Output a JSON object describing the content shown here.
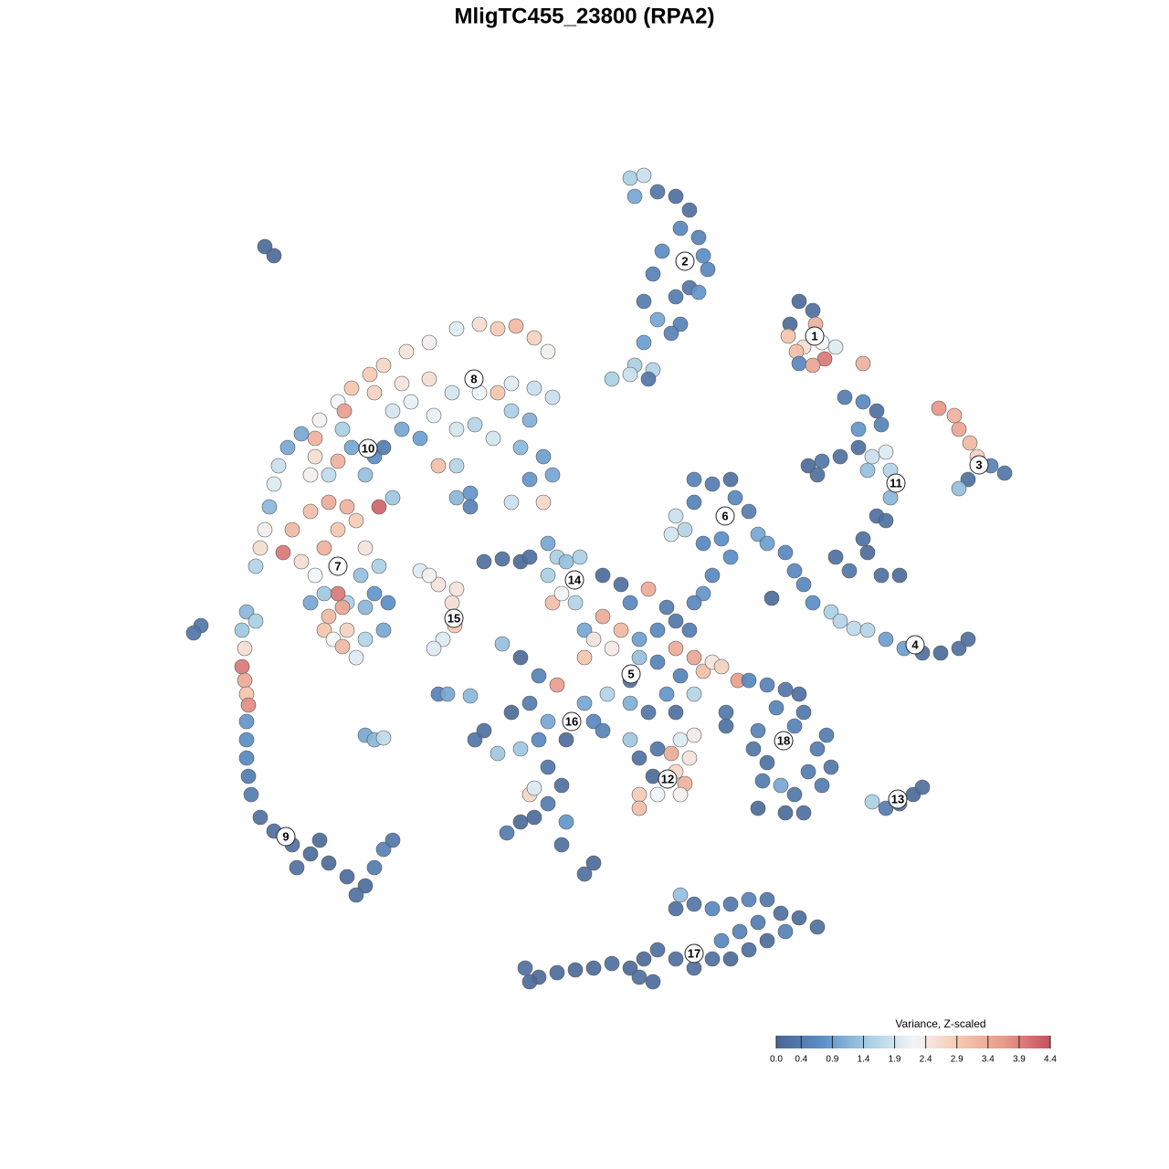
{
  "chart_data": {
    "type": "scatter",
    "title": "MligTC455_23800 (RPA2)",
    "xlim": [
      0,
      1280
    ],
    "ylim": [
      1280,
      0
    ],
    "x": [
      690,
      705,
      695,
      720,
      740,
      755,
      745,
      765,
      770,
      775,
      725,
      715,
      755,
      740,
      705,
      720,
      745,
      705,
      695,
      715,
      710,
      670,
      690,
      735,
      765,
      875,
      890,
      865,
      863,
      880,
      900,
      915,
      893,
      872,
      903,
      875,
      890,
      945,
      1028,
      1045,
      1050,
      1062,
      1070,
      1085,
      1100,
      1060,
      1050,
      925,
      945,
      960,
      965,
      940,
      940,
      955,
      970,
      975,
      950,
      920,
      900,
      885,
      895,
      975,
      960,
      970,
      945,
      950,
      915,
      930,
      965,
      985,
      860,
      870,
      880,
      890,
      910,
      920,
      935,
      950,
      970,
      990,
      1010,
      1030,
      1050,
      1060,
      845,
      760,
      780,
      800,
      805,
      820,
      830,
      790,
      770,
      740,
      735,
      750,
      760,
      800,
      780,
      770,
      760,
      840,
      500,
      525,
      545,
      565,
      585,
      600,
      470,
      445,
      420,
      405,
      385,
      370,
      350,
      330,
      315,
      305,
      300,
      295,
      290,
      285,
      280,
      310,
      320,
      340,
      360,
      380,
      370,
      390,
      400,
      355,
      345,
      330,
      415,
      400,
      410,
      420,
      440,
      460,
      430,
      450,
      475,
      500,
      520,
      540,
      560,
      580,
      595,
      605,
      580,
      570,
      525,
      545,
      560,
      585,
      605,
      495,
      470,
      440,
      410,
      480,
      500,
      515,
      430,
      345,
      375,
      385,
      345,
      377,
      340,
      360,
      370,
      595,
      560,
      395,
      410,
      425,
      400,
      380,
      370,
      375,
      360,
      355,
      380,
      365,
      400,
      420,
      390,
      375,
      340,
      415,
      355,
      290,
      300,
      270,
      280,
      265,
      268,
      265,
      268,
      270,
      272,
      270,
      270,
      270,
      272,
      275,
      285,
      300,
      320,
      340,
      360,
      380,
      400,
      390,
      410,
      420,
      430,
      350,
      325,
      220,
      212,
      460,
      480,
      495,
      498,
      485,
      475,
      500,
      470,
      530,
      550,
      570,
      600,
      610,
      620,
      635,
      600,
      605,
      615,
      630,
      580,
      660,
      680,
      690,
      710,
      730,
      740,
      755,
      720,
      700,
      680,
      660,
      640,
      640,
      650,
      670,
      700,
      720,
      745,
      760,
      730,
      710,
      690,
      665,
      640,
      610,
      590,
      570,
      550,
      580,
      560,
      600,
      620,
      590,
      570,
      545,
      520,
      530,
      600,
      615,
      600,
      585,
      570,
      555,
      620,
      615,
      650,
      640,
      650,
      660,
      690,
      700,
      720,
      735,
      745,
      760,
      755,
      740,
      715,
      700,
      720,
      750,
      745,
      700,
      580,
      585,
      760,
      770,
      780,
      790,
      808,
      740,
      795,
      795,
      740,
      690,
      820,
      840,
      860,
      875,
      880,
      870,
      850,
      830,
      825,
      840,
      835,
      855,
      870,
      880,
      860,
      830,
      895,
      905,
      910,
      900,
      885,
      955,
      970,
      985,
      1000,
      1010,
      745,
      740,
      760,
      780,
      800,
      820,
      840,
      855,
      875,
      895,
      860,
      840,
      820,
      800,
      780,
      760,
      740,
      720,
      705,
      690,
      700,
      715,
      670,
      650,
      630,
      610,
      590,
      575,
      580,
      830,
      810,
      790,
      400,
      410,
      420,
      480,
      490,
      515,
      500,
      515
    ],
    "y": [
      195,
      192,
      215,
      210,
      215,
      230,
      250,
      260,
      280,
      295,
      275,
      300,
      315,
      325,
      330,
      350,
      355,
      375,
      400,
      405,
      415,
      415,
      410,
      365,
      320,
      330,
      340,
      355,
      368,
      380,
      375,
      380,
      355,
      385,
      393,
      398,
      400,
      398,
      447,
      455,
      470,
      485,
      500,
      510,
      518,
      525,
      535,
      435,
      440,
      450,
      465,
      470,
      490,
      500,
      495,
      515,
      515,
      500,
      505,
      510,
      520,
      545,
      565,
      570,
      590,
      605,
      610,
      625,
      630,
      630,
      605,
      625,
      640,
      660,
      670,
      680,
      688,
      690,
      700,
      710,
      715,
      715,
      710,
      700,
      655,
      525,
      530,
      525,
      545,
      560,
      585,
      590,
      595,
      565,
      585,
      580,
      550,
      610,
      630,
      650,
      660,
      595,
      360,
      355,
      360,
      357,
      370,
      385,
      375,
      385,
      400,
      410,
      425,
      440,
      460,
      475,
      490,
      510,
      530,
      555,
      580,
      600,
      620,
      605,
      580,
      560,
      550,
      555,
      580,
      570,
      600,
      600,
      630,
      615,
      555,
      520,
      500,
      490,
      470,
      480,
      450,
      440,
      455,
      470,
      465,
      480,
      450,
      460,
      500,
      520,
      525,
      490,
      430,
      430,
      420,
      425,
      435,
      430,
      415,
      420,
      430,
      510,
      510,
      540,
      545,
      500,
      470,
      490,
      480,
      450,
      520,
      520,
      505,
      550,
      550,
      630,
      650,
      660,
      665,
      660,
      650,
      665,
      675,
      690,
      690,
      700,
      700,
      690,
      720,
      708,
      660,
      620,
      650,
      270,
      280,
      670,
      680,
      690,
      710,
      730,
      745,
      760,
      772,
      790,
      810,
      830,
      850,
      870,
      895,
      910,
      925,
      935,
      945,
      960,
      970,
      980,
      950,
      930,
      920,
      920,
      950,
      685,
      693,
      625,
      640,
      660,
      685,
      700,
      710,
      645,
      630,
      615,
      612,
      615,
      595,
      610,
      615,
      610,
      630,
      660,
      650,
      660,
      610,
      630,
      640,
      660,
      645,
      665,
      680,
      690,
      690,
      700,
      690,
      675,
      690,
      720,
      700,
      710,
      720,
      725,
      740,
      760,
      760,
      780,
      770,
      760,
      770,
      750,
      740,
      720,
      705,
      770,
      780,
      790,
      810,
      810,
      820,
      825,
      810,
      800,
      840,
      860,
      880,
      895,
      900,
      912,
      900,
      925,
      945,
      957,
      790,
      800,
      810,
      830,
      820,
      825,
      810,
      805,
      830,
      845,
      850,
      870,
      870,
      858,
      870,
      885,
      870,
      863,
      720,
      735,
      725,
      730,
      745,
      710,
      780,
      795,
      780,
      745,
      745,
      750,
      755,
      760,
      780,
      795,
      775,
      800,
      820,
      835,
      855,
      860,
      870,
      890,
      890,
      885,
      820,
      805,
      840,
      860,
      845,
      878,
      885,
      880,
      870,
      862,
      980,
      995,
      990,
      995,
      990,
      985,
      985,
      1000,
      1005,
      1015,
      1020,
      1030,
      1040,
      1050,
      1050,
      1060,
      1050,
      1040,
      1050,
      1060,
      1070,
      1075,
      1055,
      1060,
      1062,
      1065,
      1070,
      1060,
      1075,
      1010,
      1020,
      1030,
      805,
      810,
      808,
      760,
      760,
      762,
      545,
      555
    ],
    "values": [
      1.5,
      1.8,
      1.0,
      0.3,
      0.2,
      0.2,
      0.6,
      0.5,
      0.7,
      0.6,
      0.7,
      0.5,
      0.3,
      0.4,
      0.4,
      1.0,
      0.5,
      0.9,
      1.5,
      1.6,
      0.3,
      1.5,
      1.8,
      0.5,
      0.8,
      0.1,
      0.2,
      0.1,
      3.0,
      2.6,
      2.2,
      2.0,
      3.3,
      3.1,
      4.0,
      0.6,
      3.5,
      3.3,
      3.7,
      3.3,
      3.5,
      3.2,
      2.8,
      0.5,
      0.3,
      0.2,
      1.3,
      0.4,
      0.6,
      0.2,
      0.5,
      0.8,
      0.2,
      1.8,
      2.0,
      1.6,
      1.3,
      0.2,
      0.3,
      0.1,
      0.2,
      1.2,
      0.2,
      0.2,
      0.2,
      0.1,
      0.2,
      0.3,
      0.2,
      0.1,
      0.6,
      0.6,
      0.6,
      0.7,
      1.5,
      1.6,
      1.7,
      1.6,
      0.9,
      0.9,
      0.2,
      0.1,
      0.2,
      0.2,
      0.1,
      0.5,
      0.4,
      0.2,
      0.6,
      0.4,
      1.0,
      0.7,
      0.6,
      1.8,
      1.9,
      1.6,
      0.5,
      0.7,
      0.6,
      0.8,
      0.6,
      0.9,
      2.0,
      2.6,
      2.9,
      3.2,
      2.8,
      2.3,
      2.3,
      2.5,
      2.7,
      2.9,
      3.0,
      2.2,
      2.3,
      1.0,
      1.0,
      1.8,
      2.0,
      1.2,
      2.3,
      2.6,
      1.6,
      4.0,
      3.2,
      3.1,
      3.4,
      3.3,
      3.0,
      2.9,
      2.5,
      3.3,
      2.2,
      2.6,
      4.2,
      1.3,
      0.7,
      0.4,
      1.0,
      0.9,
      1.9,
      2.1,
      2.1,
      1.9,
      1.6,
      1.9,
      1.5,
      1.1,
      0.9,
      1.0,
      0.8,
      1.2,
      2.2,
      3.0,
      2.0,
      1.8,
      1.8,
      1.9,
      2.6,
      2.5,
      2.8,
      3.1,
      1.6,
      0.8,
      1.4,
      2.6,
      1.5,
      1.0,
      3.3,
      3.6,
      2.3,
      1.7,
      3.3,
      2.7,
      1.8,
      1.3,
      0.8,
      0.7,
      1.2,
      1.5,
      4.0,
      3.5,
      3.2,
      3.0,
      2.8,
      2.2,
      1.6,
      1.0,
      2.0,
      3.2,
      1.0,
      1.5,
      1.4,
      0.1,
      0.1,
      1.2,
      1.5,
      1.4,
      2.6,
      4.0,
      3.4,
      3.0,
      3.8,
      0.8,
      0.7,
      0.6,
      0.4,
      0.4,
      0.2,
      0.2,
      0.2,
      0.1,
      0.1,
      0.1,
      0.1,
      0.2,
      0.4,
      0.5,
      0.3,
      0.1,
      0.2,
      0.3,
      0.3,
      2.0,
      2.5,
      2.6,
      3.0,
      2.0,
      2.0,
      2.5,
      2.3,
      0.2,
      0.2,
      0.1,
      1.0,
      1.5,
      1.3,
      1.5,
      1.5,
      3.1,
      2.2,
      1.6,
      0.2,
      0.1,
      0.2,
      0.6,
      3.4,
      0.4,
      0.3,
      0.4,
      0.6,
      0.9,
      3.2,
      3.4,
      1.0,
      3.0,
      2.5,
      2.4,
      1.3,
      0.5,
      0.5,
      1.6,
      0.8,
      0.3,
      1.1,
      1.6,
      1.0,
      3.6,
      0.5,
      0.1,
      1.3,
      0.4,
      0.1,
      1.0,
      0.1,
      0.6,
      1.4,
      1.4,
      0.3,
      0.2,
      0.3,
      0.2,
      0.4,
      0.1,
      0.1,
      0.4,
      0.8,
      0.2,
      0.1,
      0.2,
      0.6,
      0.5,
      1.4,
      0.2,
      0.3,
      3.4,
      2.0,
      2.4,
      2.5,
      2.7,
      0.1,
      2.9,
      2.2,
      3.3,
      2.3,
      3.1,
      2.7,
      2.0,
      3.5,
      3.1,
      2.5,
      2.8,
      3.6,
      3.4,
      0.3,
      0.2,
      0.2,
      0.2,
      0.6,
      0.5,
      0.3,
      0.2,
      0.3,
      0.5,
      0.5,
      0.5,
      0.3,
      0.2,
      0.4,
      1.0,
      0.3,
      0.2,
      0.1,
      0.1,
      0.4,
      0.4,
      0.3,
      0.4,
      0.4,
      1.5,
      0.4,
      0.2,
      0.1,
      0.2,
      1.3,
      0.2,
      0.3,
      0.6,
      0.3,
      0.5,
      0.3,
      0.2,
      0.1,
      0.2,
      0.5,
      0.1,
      0.2,
      0.1,
      0.2,
      0.2,
      0.2,
      0.2,
      0.1,
      0.1,
      0.2,
      0.1,
      0.2,
      0.1,
      0.1,
      0.1,
      0.1,
      0.2,
      0.1,
      0.4,
      0.5,
      0.6,
      1.0,
      1.2,
      1.7,
      0.5,
      1.0,
      1.2,
      1.2,
      0.5
    ],
    "cluster_labels": [
      {
        "label": "1",
        "x": 892,
        "y": 368
      },
      {
        "label": "2",
        "x": 750,
        "y": 286
      },
      {
        "label": "3",
        "x": 1072,
        "y": 509
      },
      {
        "label": "4",
        "x": 1002,
        "y": 706
      },
      {
        "label": "5",
        "x": 691,
        "y": 738
      },
      {
        "label": "6",
        "x": 794,
        "y": 565
      },
      {
        "label": "7",
        "x": 370,
        "y": 620
      },
      {
        "label": "8",
        "x": 519,
        "y": 415
      },
      {
        "label": "9",
        "x": 313,
        "y": 916
      },
      {
        "label": "10",
        "x": 403,
        "y": 491
      },
      {
        "label": "11",
        "x": 981,
        "y": 529
      },
      {
        "label": "12",
        "x": 731,
        "y": 853
      },
      {
        "label": "13",
        "x": 983,
        "y": 875
      },
      {
        "label": "14",
        "x": 629,
        "y": 635
      },
      {
        "label": "15",
        "x": 497,
        "y": 677
      },
      {
        "label": "16",
        "x": 626,
        "y": 790
      },
      {
        "label": "17",
        "x": 760,
        "y": 1044
      },
      {
        "label": "18",
        "x": 858,
        "y": 811
      }
    ],
    "colorbar": {
      "title": "Variance, Z-scaled",
      "lim": [
        0,
        4.4
      ],
      "colors": [
        "#4a6591",
        "#5b8fc8",
        "#a6cde3",
        "#f2f5f8",
        "#f5c9b1",
        "#e8998a",
        "#c6505f"
      ],
      "ticks": [
        {
          "value": 0,
          "label": "0.0"
        },
        0.4,
        0.9,
        1.4,
        1.9,
        2.4,
        2.9,
        3.4,
        3.9,
        4.4
      ]
    }
  }
}
